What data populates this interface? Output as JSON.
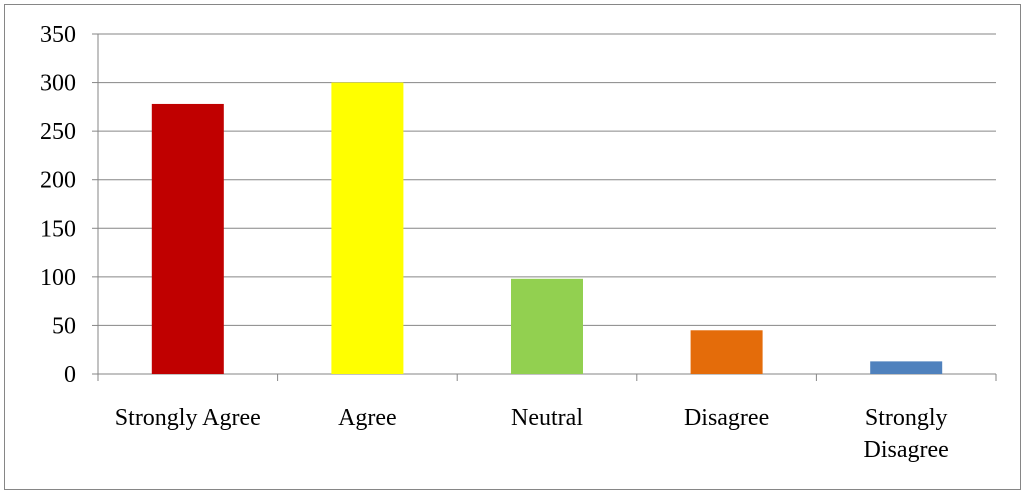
{
  "chart_data": {
    "type": "bar",
    "categories": [
      "Strongly Agree",
      "Agree",
      "Neutral",
      "Disagree",
      "Strongly Disagree"
    ],
    "category_lines": [
      [
        "Strongly Agree"
      ],
      [
        "Agree"
      ],
      [
        "Neutral"
      ],
      [
        "Disagree"
      ],
      [
        "Strongly",
        "Disagree"
      ]
    ],
    "values": [
      278,
      300,
      98,
      45,
      13
    ],
    "colors": [
      "#c00000",
      "#ffff00",
      "#92d050",
      "#e46c0a",
      "#4f81bd"
    ],
    "ylim": [
      0,
      350
    ],
    "yticks": [
      0,
      50,
      100,
      150,
      200,
      250,
      300,
      350
    ],
    "grid": true,
    "legend": "none",
    "title": "",
    "xlabel": "",
    "ylabel": ""
  }
}
